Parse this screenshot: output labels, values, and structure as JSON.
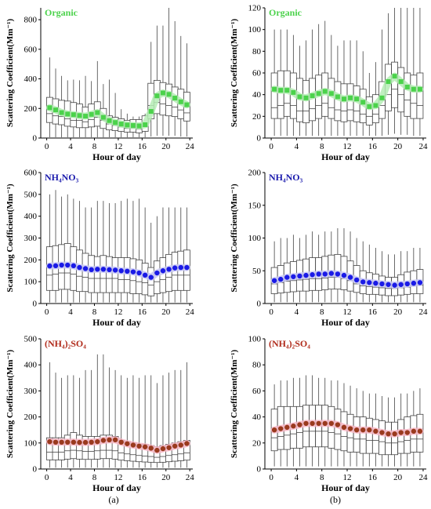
{
  "figure": {
    "panel_labels": [
      "(a)",
      "(b)"
    ]
  },
  "chart_data": [
    {
      "id": "a-organic",
      "type": "box",
      "title": "Organic",
      "title_color": "#4bd24b",
      "xlabel": "Hour of day",
      "ylabel": "Scattering Coefficient(Mm⁻¹)",
      "xlim": [
        -1,
        24.5
      ],
      "ylim": [
        0,
        880
      ],
      "xticks": [
        0,
        4,
        8,
        12,
        16,
        20,
        24
      ],
      "yticks": [
        0,
        200,
        400,
        600,
        800
      ],
      "marker": "square",
      "mean_color": "#4bd24b",
      "band_color": "#b5ecb5",
      "mean": [
        205,
        190,
        172,
        162,
        158,
        152,
        148,
        160,
        172,
        140,
        118,
        105,
        95,
        88,
        85,
        82,
        90,
        180,
        285,
        305,
        295,
        270,
        245,
        225
      ],
      "whisker_high": [
        545,
        470,
        420,
        390,
        395,
        390,
        420,
        385,
        520,
        365,
        395,
        305,
        195,
        165,
        145,
        145,
        165,
        650,
        760,
        760,
        880,
        790,
        690,
        640
      ],
      "q3": [
        275,
        265,
        255,
        250,
        240,
        230,
        210,
        230,
        245,
        200,
        150,
        140,
        130,
        120,
        125,
        125,
        150,
        370,
        390,
        375,
        365,
        345,
        330,
        310
      ],
      "median": [
        165,
        150,
        145,
        130,
        120,
        120,
        110,
        125,
        140,
        120,
        95,
        85,
        75,
        65,
        65,
        60,
        80,
        220,
        240,
        230,
        220,
        210,
        190,
        170
      ],
      "q1": [
        105,
        95,
        90,
        80,
        75,
        70,
        70,
        75,
        80,
        65,
        55,
        50,
        45,
        40,
        40,
        35,
        45,
        130,
        165,
        155,
        150,
        145,
        130,
        115
      ],
      "whisker_low": [
        5,
        5,
        5,
        5,
        5,
        5,
        5,
        5,
        5,
        5,
        5,
        5,
        5,
        5,
        5,
        5,
        5,
        10,
        15,
        15,
        15,
        15,
        10,
        10
      ]
    },
    {
      "id": "b-organic",
      "type": "box",
      "title": "Organic",
      "title_color": "#4bd24b",
      "xlabel": "Hour of day",
      "ylabel": "Scattering Coefficient(Mm⁻¹)",
      "xlim": [
        -1,
        24.5
      ],
      "ylim": [
        0,
        120
      ],
      "xticks": [
        0,
        4,
        8,
        12,
        16,
        20,
        24
      ],
      "yticks": [
        0,
        20,
        40,
        60,
        80,
        100,
        120
      ],
      "marker": "square",
      "mean_color": "#4bd24b",
      "band_color": "#b5ecb5",
      "mean": [
        45,
        44,
        44,
        42,
        38,
        37,
        39,
        41,
        43,
        41,
        38,
        36,
        37,
        36,
        33,
        29,
        30,
        37,
        52,
        57,
        52,
        47,
        45,
        45
      ],
      "whisker_high": [
        100,
        100,
        100,
        95,
        85,
        90,
        100,
        105,
        108,
        95,
        85,
        90,
        90,
        90,
        80,
        60,
        70,
        100,
        115,
        120,
        120,
        120,
        120,
        120
      ],
      "q3": [
        60,
        62,
        62,
        60,
        55,
        53,
        55,
        58,
        60,
        55,
        52,
        50,
        50,
        48,
        45,
        38,
        40,
        52,
        68,
        70,
        65,
        60,
        58,
        60
      ],
      "median": [
        28,
        30,
        32,
        30,
        25,
        25,
        27,
        30,
        32,
        28,
        26,
        25,
        26,
        25,
        22,
        20,
        22,
        30,
        40,
        45,
        40,
        35,
        32,
        30
      ],
      "q1": [
        18,
        18,
        20,
        18,
        15,
        14,
        16,
        18,
        20,
        18,
        16,
        15,
        16,
        15,
        14,
        12,
        14,
        18,
        25,
        28,
        24,
        20,
        18,
        18
      ],
      "whisker_low": [
        2,
        2,
        2,
        2,
        2,
        2,
        2,
        2,
        2,
        2,
        2,
        2,
        2,
        2,
        2,
        2,
        2,
        2,
        3,
        4,
        3,
        3,
        2,
        2
      ]
    },
    {
      "id": "a-nh4no3",
      "type": "box",
      "title": "NH₄NO₃",
      "title_color": "#1a1aad",
      "xlabel": "Hour of day",
      "ylabel": "Scattering Coefficient(Mm⁻¹)",
      "xlim": [
        -1,
        24.5
      ],
      "ylim": [
        0,
        600
      ],
      "xticks": [
        0,
        4,
        8,
        12,
        16,
        20,
        24
      ],
      "yticks": [
        0,
        100,
        200,
        300,
        400,
        500,
        600
      ],
      "marker": "circle",
      "mean_color": "#1a1ae6",
      "band_color": "#c8c8f5",
      "mean": [
        172,
        173,
        176,
        176,
        173,
        165,
        160,
        155,
        157,
        157,
        155,
        153,
        150,
        148,
        145,
        140,
        130,
        120,
        140,
        150,
        157,
        163,
        165,
        165
      ],
      "whisker_high": [
        500,
        520,
        490,
        500,
        480,
        470,
        440,
        440,
        470,
        470,
        460,
        460,
        470,
        480,
        470,
        480,
        440,
        370,
        400,
        440,
        440,
        440,
        440,
        440
      ],
      "q3": [
        260,
        265,
        270,
        275,
        260,
        245,
        230,
        220,
        215,
        220,
        215,
        210,
        210,
        210,
        205,
        200,
        185,
        165,
        195,
        210,
        225,
        235,
        240,
        245
      ],
      "median": [
        130,
        135,
        140,
        140,
        135,
        125,
        120,
        115,
        115,
        115,
        115,
        115,
        110,
        110,
        105,
        100,
        95,
        85,
        100,
        110,
        120,
        130,
        130,
        130
      ],
      "q1": [
        60,
        60,
        65,
        65,
        60,
        55,
        55,
        50,
        50,
        50,
        50,
        50,
        50,
        50,
        45,
        45,
        40,
        35,
        45,
        50,
        55,
        60,
        60,
        60
      ],
      "whisker_low": [
        5,
        5,
        5,
        5,
        5,
        5,
        5,
        5,
        5,
        5,
        5,
        5,
        5,
        5,
        5,
        5,
        5,
        5,
        5,
        5,
        5,
        5,
        5,
        5
      ]
    },
    {
      "id": "b-nh4no3",
      "type": "box",
      "title": "NH₄NO₃",
      "title_color": "#1a1aad",
      "xlabel": "Hour of day",
      "ylabel": "Scattering Coefficient(Mm⁻¹)",
      "xlim": [
        -1,
        24.5
      ],
      "ylim": [
        0,
        200
      ],
      "xticks": [
        0,
        4,
        8,
        12,
        16,
        20,
        24
      ],
      "yticks": [
        0,
        50,
        100,
        150,
        200
      ],
      "marker": "circle",
      "mean_color": "#1a1ae6",
      "band_color": "#c8c8f5",
      "mean": [
        35,
        37,
        40,
        41,
        42,
        43,
        44,
        45,
        45,
        46,
        45,
        43,
        40,
        36,
        33,
        32,
        31,
        30,
        29,
        28,
        29,
        30,
        31,
        32
      ],
      "whisker_high": [
        95,
        100,
        100,
        105,
        100,
        105,
        110,
        105,
        110,
        110,
        115,
        115,
        110,
        100,
        95,
        90,
        85,
        80,
        75,
        75,
        80,
        80,
        85,
        85
      ],
      "q3": [
        55,
        58,
        62,
        64,
        66,
        68,
        70,
        70,
        72,
        74,
        75,
        72,
        65,
        58,
        50,
        47,
        45,
        42,
        40,
        40,
        44,
        48,
        50,
        52
      ],
      "median": [
        30,
        32,
        34,
        35,
        36,
        37,
        38,
        38,
        39,
        40,
        40,
        38,
        35,
        30,
        27,
        26,
        25,
        24,
        23,
        23,
        24,
        25,
        27,
        28
      ],
      "q1": [
        15,
        16,
        17,
        18,
        19,
        19,
        20,
        20,
        21,
        22,
        22,
        21,
        19,
        17,
        15,
        14,
        14,
        13,
        12,
        12,
        13,
        14,
        15,
        15
      ],
      "whisker_low": [
        2,
        2,
        2,
        2,
        2,
        2,
        2,
        2,
        2,
        2,
        2,
        2,
        2,
        2,
        2,
        2,
        2,
        2,
        2,
        2,
        2,
        2,
        2,
        2
      ]
    },
    {
      "id": "a-nh42so4",
      "type": "box",
      "title": "(NH₄)₂SO₄",
      "title_color": "#b02a1a",
      "xlabel": "Hour of day",
      "ylabel": "Scattering Coefficient(Mm⁻¹)",
      "xlim": [
        -1,
        24.5
      ],
      "ylim": [
        0,
        500
      ],
      "xticks": [
        0,
        4,
        8,
        12,
        16,
        20,
        24
      ],
      "yticks": [
        0,
        100,
        200,
        300,
        400,
        500
      ],
      "marker": "circle",
      "mean_color": "#9a3a1e",
      "band_color": "#f7b8c8",
      "mean": [
        105,
        103,
        103,
        103,
        103,
        102,
        102,
        103,
        105,
        110,
        112,
        112,
        103,
        97,
        92,
        88,
        85,
        80,
        72,
        78,
        82,
        88,
        92,
        98
      ],
      "whisker_high": [
        410,
        370,
        350,
        360,
        360,
        350,
        380,
        380,
        440,
        440,
        390,
        380,
        360,
        350,
        360,
        350,
        360,
        360,
        330,
        360,
        370,
        380,
        380,
        410
      ],
      "q3": [
        120,
        120,
        120,
        130,
        140,
        130,
        125,
        125,
        125,
        130,
        130,
        125,
        110,
        105,
        100,
        95,
        95,
        90,
        85,
        90,
        95,
        100,
        105,
        110
      ],
      "median": [
        65,
        65,
        65,
        70,
        72,
        70,
        68,
        68,
        70,
        72,
        72,
        70,
        62,
        58,
        55,
        52,
        50,
        48,
        45,
        48,
        52,
        55,
        58,
        62
      ],
      "q1": [
        35,
        35,
        35,
        38,
        40,
        38,
        37,
        37,
        38,
        40,
        40,
        38,
        34,
        32,
        30,
        28,
        27,
        26,
        25,
        26,
        28,
        30,
        32,
        34
      ],
      "whisker_low": [
        5,
        5,
        5,
        5,
        5,
        5,
        5,
        5,
        5,
        5,
        5,
        5,
        5,
        5,
        5,
        5,
        5,
        5,
        5,
        5,
        5,
        5,
        5,
        5
      ]
    },
    {
      "id": "b-nh42so4",
      "type": "box",
      "title": "(NH₄)₂SO₄",
      "title_color": "#b02a1a",
      "xlabel": "Hour of day",
      "ylabel": "Scattering Coefficient(Mm⁻¹)",
      "xlim": [
        -1,
        24.5
      ],
      "ylim": [
        0,
        100
      ],
      "xticks": [
        0,
        4,
        8,
        12,
        16,
        20,
        24
      ],
      "yticks": [
        0,
        20,
        40,
        60,
        80,
        100
      ],
      "marker": "circle",
      "mean_color": "#9a3a1e",
      "band_color": "#f7b8c8",
      "mean": [
        30,
        31,
        32,
        33,
        34,
        35,
        35,
        35,
        35,
        35,
        34,
        32,
        31,
        30,
        30,
        30,
        29,
        28,
        27,
        27,
        28,
        28,
        29,
        29
      ],
      "whisker_high": [
        65,
        68,
        68,
        70,
        70,
        72,
        72,
        70,
        70,
        68,
        68,
        66,
        64,
        62,
        60,
        58,
        58,
        56,
        55,
        55,
        58,
        58,
        60,
        62
      ],
      "q3": [
        46,
        48,
        48,
        48,
        48,
        49,
        49,
        49,
        49,
        48,
        46,
        44,
        42,
        40,
        40,
        39,
        38,
        37,
        36,
        36,
        38,
        40,
        41,
        42
      ],
      "median": [
        24,
        25,
        26,
        27,
        28,
        29,
        29,
        29,
        29,
        28,
        27,
        25,
        24,
        23,
        23,
        22,
        22,
        21,
        20,
        20,
        21,
        22,
        23,
        23
      ],
      "q1": [
        14,
        15,
        15,
        16,
        16,
        17,
        17,
        17,
        17,
        16,
        15,
        14,
        13,
        13,
        12,
        12,
        12,
        11,
        11,
        11,
        12,
        12,
        13,
        13
      ],
      "whisker_low": [
        2,
        2,
        2,
        2,
        2,
        2,
        2,
        2,
        2,
        2,
        2,
        2,
        2,
        2,
        2,
        2,
        2,
        2,
        2,
        2,
        2,
        2,
        2,
        2
      ]
    }
  ]
}
